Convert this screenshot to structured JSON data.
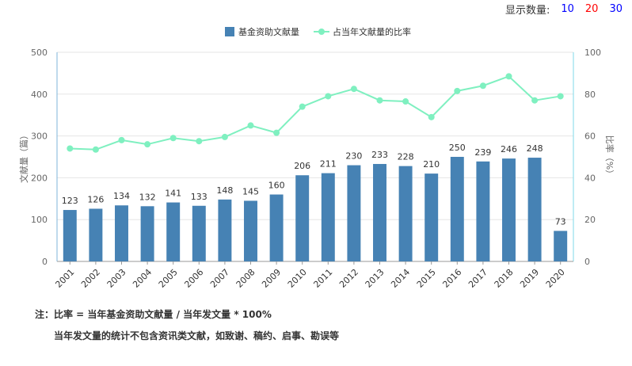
{
  "display_count": {
    "label": "显示数量:",
    "options": [
      {
        "label": "10",
        "color": "#0000ff"
      },
      {
        "label": "20",
        "color": "#ff0000"
      },
      {
        "label": "30",
        "color": "#0000ff"
      }
    ]
  },
  "chart_data": {
    "type": "bar+line",
    "categories": [
      "2001",
      "2002",
      "2003",
      "2004",
      "2005",
      "2006",
      "2007",
      "2008",
      "2009",
      "2010",
      "2011",
      "2012",
      "2013",
      "2014",
      "2015",
      "2016",
      "2017",
      "2018",
      "2019",
      "2020"
    ],
    "series": [
      {
        "name": "基金资助文献量",
        "type": "bar",
        "axis": "left",
        "color": "#4682b4",
        "values": [
          123,
          126,
          134,
          132,
          141,
          133,
          148,
          145,
          160,
          206,
          211,
          230,
          233,
          228,
          210,
          250,
          239,
          246,
          248,
          73
        ]
      },
      {
        "name": "占当年文献量的比率",
        "type": "line",
        "axis": "right",
        "color": "#7ff0c0",
        "values": [
          54,
          53.5,
          58,
          56,
          59,
          57.5,
          59.5,
          65,
          61.5,
          74,
          79,
          82.5,
          77,
          76.5,
          69,
          81.5,
          84,
          88.5,
          77,
          79
        ]
      }
    ],
    "ylabel": "文献量（篇）",
    "y2label": "比率（%）",
    "ylim": [
      0,
      500
    ],
    "y2lim": [
      0,
      100
    ],
    "yticks": [
      0,
      100,
      200,
      300,
      400,
      500
    ],
    "y2ticks": [
      0,
      20,
      40,
      60,
      80,
      100
    ],
    "grid": true,
    "legend": "top-center"
  },
  "notes": {
    "line1": "注：比率 = 当年基金资助文献量 / 当年发文量 * 100%",
    "line2": "当年发文量的统计不包含资讯类文献，如致谢、稿约、启事、勘误等"
  }
}
